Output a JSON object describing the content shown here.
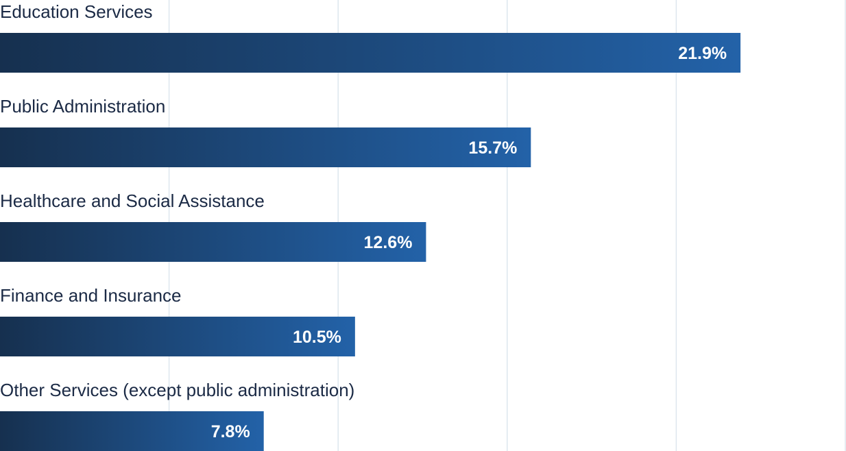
{
  "chart_data": {
    "type": "bar",
    "orientation": "horizontal",
    "categories": [
      "Education Services",
      "Public Administration",
      "Healthcare and Social Assistance",
      "Finance and Insurance",
      "Other Services (except public administration)"
    ],
    "values": [
      21.9,
      15.7,
      12.6,
      10.5,
      7.8
    ],
    "value_labels": [
      "21.9%",
      "15.7%",
      "12.6%",
      "10.5%",
      "7.8%"
    ],
    "xlim": [
      0,
      25
    ],
    "grid": true,
    "title": "",
    "xlabel": "",
    "ylabel": ""
  },
  "colors": {
    "bar_gradient_start": "#16304f",
    "bar_gradient_end": "#2362a8",
    "category_text": "#1b2a45",
    "value_text": "#ffffff",
    "gridline": "#dde6ee"
  }
}
